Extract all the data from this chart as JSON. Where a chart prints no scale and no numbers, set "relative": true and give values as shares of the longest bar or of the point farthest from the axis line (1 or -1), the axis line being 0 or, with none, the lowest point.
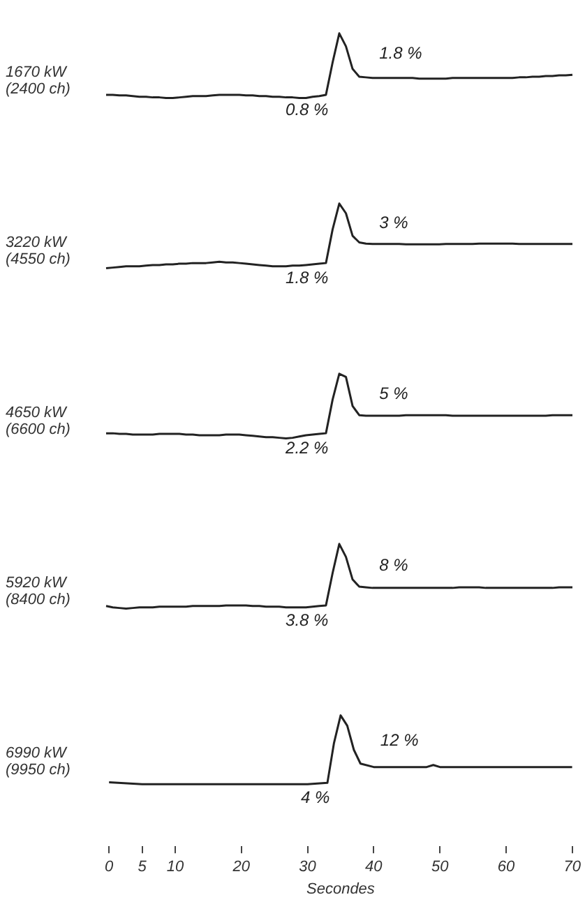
{
  "chart_data": [
    {
      "type": "line",
      "relative": true,
      "ylabel": "1670 kW\n(2400 ch)",
      "color": "#222222",
      "tick_labels": false,
      "categories": [
        null,
        null,
        null,
        null,
        null,
        null,
        null,
        null,
        null,
        null,
        null,
        null,
        null,
        null,
        null,
        null,
        null,
        null,
        null,
        null,
        null,
        null,
        null,
        null,
        null,
        null,
        null,
        null,
        null,
        null,
        null,
        null,
        null,
        null,
        null,
        null,
        null,
        null,
        null,
        null,
        null,
        null,
        null,
        null,
        null,
        null,
        null,
        null,
        null,
        null,
        null,
        null,
        null,
        null,
        null,
        null,
        null,
        null,
        null,
        null,
        null,
        null,
        null,
        null,
        null,
        null,
        null,
        null,
        null,
        null,
        null
      ],
      "values": [
        0.05,
        0.05,
        0.04,
        0.04,
        0.03,
        0.02,
        0.02,
        0.01,
        0.01,
        0,
        0,
        0.01,
        0.02,
        0.03,
        0.03,
        0.03,
        0.04,
        0.05,
        0.05,
        0.05,
        0.05,
        0.04,
        0.04,
        0.03,
        0.03,
        0.02,
        0.02,
        0.01,
        0.01,
        0,
        0,
        0.02,
        0.03,
        0.05,
        0.55,
        1,
        0.8,
        0.45,
        0.33,
        0.32,
        0.31,
        0.31,
        0.31,
        0.31,
        0.31,
        0.31,
        0.31,
        0.3,
        0.3,
        0.3,
        0.3,
        0.3,
        0.31,
        0.31,
        0.31,
        0.31,
        0.31,
        0.31,
        0.31,
        0.31,
        0.31,
        0.31,
        0.32,
        0.32,
        0.33,
        0.33,
        0.34,
        0.34,
        0.35,
        0.35,
        0.36
      ],
      "annotations": [
        "1.8 %",
        "0.8 %"
      ]
    },
    {
      "type": "line",
      "relative": true,
      "ylabel": "3220 kW\n(4550 ch)",
      "color": "#222222",
      "tick_labels": false,
      "categories": [
        null,
        null,
        null,
        null,
        null,
        null,
        null,
        null,
        null,
        null,
        null,
        null,
        null,
        null,
        null,
        null,
        null,
        null,
        null,
        null,
        null,
        null,
        null,
        null,
        null,
        null,
        null,
        null,
        null,
        null,
        null,
        null,
        null,
        null,
        null,
        null,
        null,
        null,
        null,
        null,
        null,
        null,
        null,
        null,
        null,
        null,
        null,
        null,
        null,
        null,
        null,
        null,
        null,
        null,
        null,
        null,
        null,
        null,
        null,
        null,
        null,
        null,
        null,
        null,
        null,
        null,
        null,
        null,
        null,
        null,
        null
      ],
      "values": [
        0,
        0.01,
        0.02,
        0.03,
        0.03,
        0.03,
        0.04,
        0.05,
        0.05,
        0.06,
        0.06,
        0.07,
        0.07,
        0.08,
        0.08,
        0.08,
        0.09,
        0.1,
        0.09,
        0.09,
        0.08,
        0.07,
        0.06,
        0.05,
        0.04,
        0.03,
        0.03,
        0.03,
        0.04,
        0.04,
        0.05,
        0.06,
        0.07,
        0.08,
        0.6,
        1,
        0.85,
        0.5,
        0.4,
        0.38,
        0.375,
        0.375,
        0.375,
        0.375,
        0.375,
        0.37,
        0.37,
        0.37,
        0.37,
        0.37,
        0.37,
        0.375,
        0.375,
        0.375,
        0.375,
        0.375,
        0.38,
        0.38,
        0.38,
        0.38,
        0.38,
        0.38,
        0.375,
        0.375,
        0.375,
        0.375,
        0.375,
        0.375,
        0.375,
        0.375,
        0.375
      ],
      "annotations": [
        "3 %",
        "1.8 %"
      ]
    },
    {
      "type": "line",
      "relative": true,
      "ylabel": "4650 kW\n(6600 ch)",
      "color": "#222222",
      "tick_labels": false,
      "categories": [
        null,
        null,
        null,
        null,
        null,
        null,
        null,
        null,
        null,
        null,
        null,
        null,
        null,
        null,
        null,
        null,
        null,
        null,
        null,
        null,
        null,
        null,
        null,
        null,
        null,
        null,
        null,
        null,
        null,
        null,
        null,
        null,
        null,
        null,
        null,
        null,
        null,
        null,
        null,
        null,
        null,
        null,
        null,
        null,
        null,
        null,
        null,
        null,
        null,
        null,
        null,
        null,
        null,
        null,
        null,
        null,
        null,
        null,
        null,
        null,
        null,
        null,
        null,
        null,
        null,
        null,
        null,
        null,
        null,
        null,
        null
      ],
      "values": [
        0.08,
        0.08,
        0.07,
        0.07,
        0.06,
        0.06,
        0.06,
        0.06,
        0.07,
        0.07,
        0.07,
        0.07,
        0.06,
        0.06,
        0.05,
        0.05,
        0.05,
        0.05,
        0.06,
        0.06,
        0.06,
        0.05,
        0.04,
        0.03,
        0.02,
        0.02,
        0.01,
        0,
        0.01,
        0.03,
        0.05,
        0.06,
        0.07,
        0.08,
        0.6,
        1,
        0.95,
        0.5,
        0.36,
        0.35,
        0.35,
        0.35,
        0.35,
        0.35,
        0.35,
        0.36,
        0.36,
        0.36,
        0.36,
        0.36,
        0.36,
        0.36,
        0.35,
        0.35,
        0.35,
        0.35,
        0.35,
        0.35,
        0.35,
        0.35,
        0.35,
        0.35,
        0.35,
        0.35,
        0.35,
        0.35,
        0.35,
        0.36,
        0.36,
        0.36,
        0.36
      ],
      "annotations": [
        "5 %",
        "2.2 %"
      ]
    },
    {
      "type": "line",
      "relative": true,
      "ylabel": "5920 kW\n(8400 ch)",
      "color": "#222222",
      "tick_labels": false,
      "categories": [
        null,
        null,
        null,
        null,
        null,
        null,
        null,
        null,
        null,
        null,
        null,
        null,
        null,
        null,
        null,
        null,
        null,
        null,
        null,
        null,
        null,
        null,
        null,
        null,
        null,
        null,
        null,
        null,
        null,
        null,
        null,
        null,
        null,
        null,
        null,
        null,
        null,
        null,
        null,
        null,
        null,
        null,
        null,
        null,
        null,
        null,
        null,
        null,
        null,
        null,
        null,
        null,
        null,
        null,
        null,
        null,
        null,
        null,
        null,
        null,
        null,
        null,
        null,
        null,
        null,
        null,
        null,
        null,
        null,
        null,
        null
      ],
      "values": [
        0.04,
        0.02,
        0.01,
        0,
        0.01,
        0.02,
        0.02,
        0.02,
        0.03,
        0.03,
        0.03,
        0.03,
        0.03,
        0.04,
        0.04,
        0.04,
        0.04,
        0.04,
        0.05,
        0.05,
        0.05,
        0.05,
        0.04,
        0.04,
        0.03,
        0.03,
        0.03,
        0.02,
        0.02,
        0.02,
        0.02,
        0.03,
        0.04,
        0.05,
        0.55,
        1,
        0.8,
        0.45,
        0.34,
        0.33,
        0.32,
        0.32,
        0.32,
        0.32,
        0.32,
        0.32,
        0.32,
        0.32,
        0.32,
        0.32,
        0.32,
        0.32,
        0.32,
        0.33,
        0.33,
        0.33,
        0.33,
        0.32,
        0.32,
        0.32,
        0.32,
        0.32,
        0.32,
        0.32,
        0.32,
        0.32,
        0.32,
        0.32,
        0.33,
        0.33,
        0.33
      ],
      "annotations": [
        "8 %",
        "3.8 %"
      ]
    },
    {
      "type": "line",
      "relative": true,
      "ylabel": "6990 kW\n(9950 ch)",
      "xlabel": "Secondes",
      "color": "#222222",
      "xlim": [
        0,
        70
      ],
      "xticks": [
        0,
        5,
        10,
        20,
        30,
        40,
        50,
        60,
        70
      ],
      "x": [
        0,
        5,
        10,
        20,
        30,
        33,
        34,
        35,
        36,
        37,
        38,
        40,
        45,
        48,
        49,
        50,
        52,
        60,
        70
      ],
      "values": [
        0.03,
        0,
        0,
        0,
        0,
        0.02,
        0.6,
        1,
        0.85,
        0.5,
        0.3,
        0.25,
        0.25,
        0.25,
        0.28,
        0.25,
        0.25,
        0.25,
        0.25
      ],
      "annotations": [
        "12 %",
        "4 %"
      ]
    }
  ]
}
